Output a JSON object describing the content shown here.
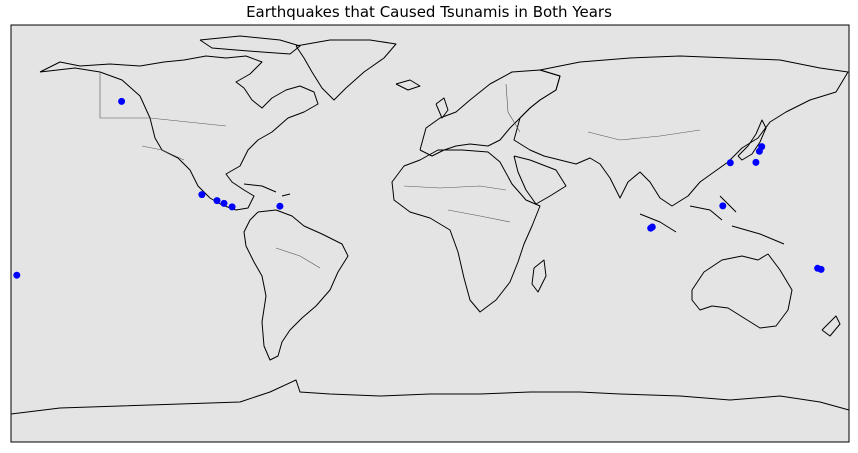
{
  "title": "Earthquakes that Caused Tsunamis in Both Years",
  "colors": {
    "ocean": "#e4e4e4",
    "land_outline": "#000000",
    "borders": "#555555",
    "points": "#0000ff"
  },
  "chart_data": {
    "type": "scatter",
    "projection": "equirectangular",
    "lon_range": [
      -180,
      180
    ],
    "lat_range": [
      -90,
      90
    ],
    "series": [
      {
        "points": [
          {
            "lon": -177.5,
            "lat": -18.0
          },
          {
            "lon": -132.5,
            "lat": 57.0
          },
          {
            "lon": -98.0,
            "lat": 16.8
          },
          {
            "lon": -91.5,
            "lat": 14.2
          },
          {
            "lon": -88.5,
            "lat": 13.0
          },
          {
            "lon": -85.0,
            "lat": 11.5
          },
          {
            "lon": -64.5,
            "lat": 11.8
          },
          {
            "lon": 94.8,
            "lat": 2.3
          },
          {
            "lon": 95.5,
            "lat": 2.8
          },
          {
            "lon": 125.8,
            "lat": 11.9
          },
          {
            "lon": 129.0,
            "lat": 30.5
          },
          {
            "lon": 140.0,
            "lat": 30.7
          },
          {
            "lon": 141.5,
            "lat": 35.5
          },
          {
            "lon": 142.5,
            "lat": 37.5
          },
          {
            "lon": 166.5,
            "lat": -15.0
          },
          {
            "lon": 168.0,
            "lat": -15.5
          }
        ]
      }
    ]
  }
}
